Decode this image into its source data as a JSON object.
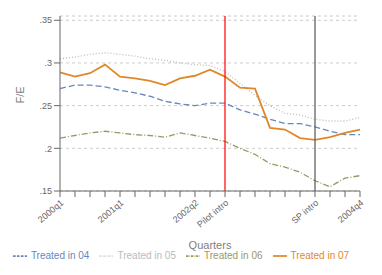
{
  "chart_data": {
    "type": "line",
    "title": "",
    "xlabel": "Quarters",
    "ylabel": "F/E",
    "categories": [
      "2000q1",
      null,
      null,
      null,
      "2001q1",
      null,
      null,
      null,
      null,
      "2002q2",
      null,
      "Pilot intro",
      null,
      null,
      null,
      null,
      null,
      "SP intro",
      null,
      null,
      "2004q4"
    ],
    "series": [
      {
        "name": "Treated in 04",
        "color": "#6688bb",
        "line_style": "dashed",
        "values": [
          0.27,
          0.274,
          0.274,
          0.272,
          0.268,
          0.265,
          0.261,
          0.255,
          0.252,
          0.25,
          0.253,
          0.253,
          0.245,
          0.24,
          0.234,
          0.229,
          0.229,
          0.225,
          0.22,
          0.216,
          0.216
        ]
      },
      {
        "name": "Treated in 05",
        "color": "#bbbbbb",
        "line_style": "dotted",
        "values": [
          0.305,
          0.307,
          0.31,
          0.312,
          0.31,
          0.308,
          0.305,
          0.303,
          0.3,
          0.298,
          0.297,
          0.29,
          0.276,
          0.262,
          0.25,
          0.241,
          0.239,
          0.234,
          0.232,
          0.232,
          0.236
        ]
      },
      {
        "name": "Treated in 06",
        "color": "#999966",
        "line_style": "dashdot",
        "values": [
          0.212,
          0.215,
          0.218,
          0.22,
          0.218,
          0.216,
          0.215,
          0.213,
          0.218,
          0.215,
          0.212,
          0.208,
          0.2,
          0.193,
          0.182,
          0.178,
          0.172,
          0.162,
          0.155,
          0.165,
          0.168
        ]
      },
      {
        "name": "Treated in 07",
        "color": "#e08828",
        "line_style": "solid",
        "values": [
          0.289,
          0.284,
          0.288,
          0.298,
          0.284,
          0.282,
          0.279,
          0.274,
          0.282,
          0.285,
          0.292,
          0.284,
          0.271,
          0.27,
          0.224,
          0.222,
          0.212,
          0.21,
          0.213,
          0.218,
          0.222
        ]
      }
    ],
    "vlines": [
      {
        "x": 11,
        "color": "red"
      },
      {
        "x": 17,
        "color": "#555555"
      }
    ],
    "ylim": [
      0.15,
      0.355
    ],
    "yticks": [
      {
        "value": 0.15,
        "label": ".15"
      },
      {
        "value": 0.2,
        "label": ".2"
      },
      {
        "value": 0.25,
        "label": ".25"
      },
      {
        "value": 0.3,
        "label": ".3"
      },
      {
        "value": 0.35,
        "label": ".35"
      }
    ],
    "grid": true,
    "legend": "bottom"
  }
}
